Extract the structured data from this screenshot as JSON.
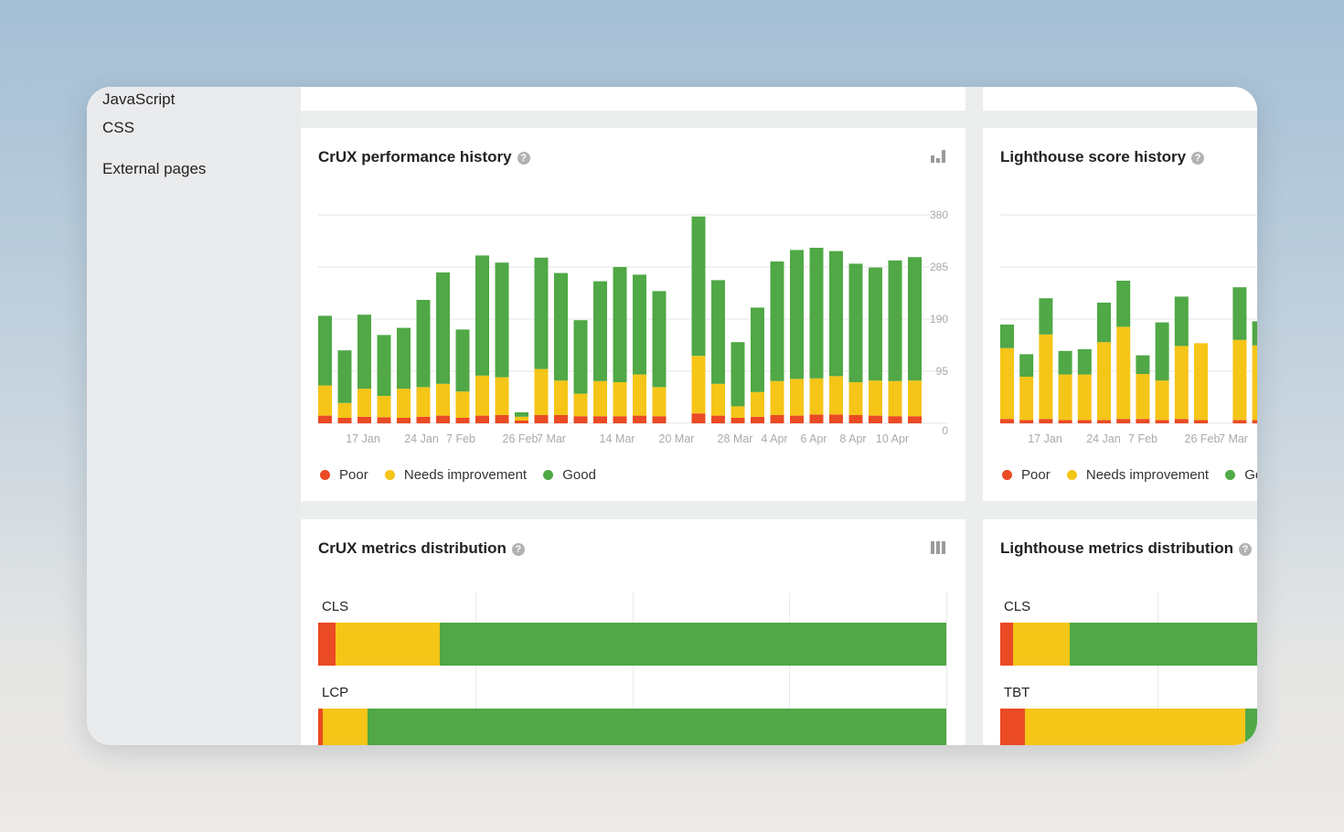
{
  "sidebar": {
    "items": [
      "JavaScript",
      "CSS",
      "External pages"
    ]
  },
  "colors": {
    "poor": "#ea4a24",
    "needs": "#f5c518",
    "good": "#50a846"
  },
  "crux_history": {
    "title": "CrUX performance history",
    "icon": "bar-chart-icon",
    "legend": [
      "Poor",
      "Needs improvement",
      "Good"
    ],
    "chart_data": {
      "type": "bar",
      "stacked": true,
      "y_ticks": [
        "380",
        "285",
        "190",
        "95",
        "0"
      ],
      "ylim": [
        0,
        380
      ],
      "x_tick_labels": [
        "17 Jan",
        "24 Jan",
        "7 Feb",
        "26 Feb",
        "7 Mar",
        "14 Mar",
        "20 Mar",
        "28 Mar",
        "4 Apr",
        "6 Apr",
        "8 Apr",
        "10 Apr"
      ],
      "series": [
        {
          "name": "Poor",
          "values": [
            14,
            10,
            12,
            11,
            10,
            12,
            14,
            10,
            14,
            15,
            5,
            15,
            15,
            13,
            13,
            13,
            14,
            13,
            0,
            18,
            14,
            10,
            12,
            15,
            14,
            16,
            16,
            15,
            14,
            13,
            13
          ]
        },
        {
          "name": "Needs improvement",
          "values": [
            55,
            27,
            51,
            39,
            53,
            54,
            58,
            48,
            73,
            69,
            7,
            84,
            63,
            41,
            64,
            62,
            75,
            53,
            0,
            105,
            58,
            21,
            45,
            62,
            67,
            66,
            70,
            60,
            64,
            64,
            65
          ]
        },
        {
          "name": "Good",
          "values": [
            127,
            96,
            135,
            111,
            111,
            159,
            203,
            113,
            219,
            209,
            8,
            203,
            196,
            134,
            182,
            210,
            182,
            175,
            0,
            254,
            189,
            117,
            154,
            218,
            235,
            238,
            228,
            216,
            206,
            220,
            225
          ]
        }
      ]
    }
  },
  "lighthouse_history": {
    "title": "Lighthouse score history",
    "legend": [
      "Poor",
      "Needs improvement",
      "Good"
    ],
    "chart_data": {
      "type": "bar",
      "stacked": true,
      "x_tick_labels": [
        "17 Jan",
        "24 Jan",
        "7 Feb",
        "26 Feb",
        "7 Mar"
      ],
      "series": [
        {
          "name": "Poor",
          "values": [
            8,
            6,
            8,
            6,
            6,
            6,
            8,
            8,
            6,
            8,
            6,
            0,
            6,
            6,
            6
          ]
        },
        {
          "name": "Needs improvement",
          "values": [
            129,
            79,
            154,
            83,
            83,
            142,
            168,
            82,
            72,
            133,
            140,
            0,
            146,
            136,
            119
          ]
        },
        {
          "name": "Good",
          "values": [
            43,
            41,
            66,
            43,
            46,
            72,
            84,
            34,
            106,
            90,
            0,
            0,
            96,
            44,
            70
          ]
        }
      ]
    }
  },
  "crux_distribution": {
    "title": "CrUX metrics distribution",
    "icon": "stacked-columns-icon",
    "metrics": [
      {
        "label": "CLS",
        "poor": 2.7,
        "needs": 16.6,
        "good": 80.7
      },
      {
        "label": "LCP",
        "poor": 0.7,
        "needs": 7.1,
        "good": 92.2
      }
    ]
  },
  "lighthouse_distribution": {
    "title": "Lighthouse metrics distribution",
    "metrics": [
      {
        "label": "CLS",
        "poor": 2.0,
        "needs": 9.0,
        "good": 89.0
      },
      {
        "label": "TBT",
        "poor": 4.0,
        "needs": 35.0,
        "good": 2.0
      }
    ]
  }
}
